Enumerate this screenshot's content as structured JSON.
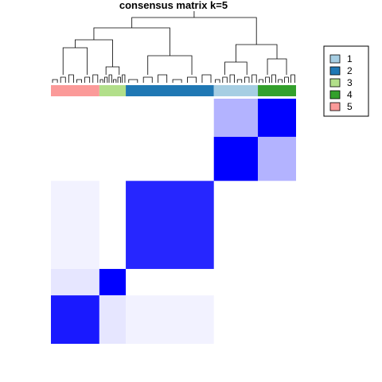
{
  "chart_data": {
    "type": "heatmap",
    "title": "consensus matrix k=5",
    "value_range": [
      0,
      1
    ],
    "color_low": "#ffffff",
    "color_high": "#0000ff",
    "column_order_groups": [
      {
        "class": "5",
        "count": 33
      },
      {
        "class": "3",
        "count": 18
      },
      {
        "class": "2",
        "count": 60
      },
      {
        "class": "1",
        "count": 30
      },
      {
        "class": "4",
        "count": 26
      }
    ],
    "row_order_groups": [
      {
        "class": "4",
        "count": 26
      },
      {
        "class": "1",
        "count": 30
      },
      {
        "class": "2",
        "count": 60
      },
      {
        "class": "3",
        "count": 18
      },
      {
        "class": "5",
        "count": 33
      }
    ],
    "block_consensus": [
      {
        "row": "1",
        "col": "1",
        "value": 1.0
      },
      {
        "row": "4",
        "col": "4",
        "value": 1.0
      },
      {
        "row": "2",
        "col": "2",
        "value": 0.85
      },
      {
        "row": "3",
        "col": "3",
        "value": 1.0
      },
      {
        "row": "5",
        "col": "5",
        "value": 0.9
      },
      {
        "row": "1",
        "col": "4",
        "value": 0.3
      },
      {
        "row": "2",
        "col": "5",
        "value": 0.05
      },
      {
        "row": "3",
        "col": "5",
        "value": 0.1
      }
    ],
    "legend": {
      "placement": "right",
      "entries": [
        {
          "label": "1",
          "color": "#a6cee3"
        },
        {
          "label": "2",
          "color": "#1f78b4"
        },
        {
          "label": "3",
          "color": "#b2df8a"
        },
        {
          "label": "4",
          "color": "#33a02c"
        },
        {
          "label": "5",
          "color": "#fb9a99"
        }
      ]
    },
    "dendrogram": "hierarchical clustering tree above columns"
  }
}
